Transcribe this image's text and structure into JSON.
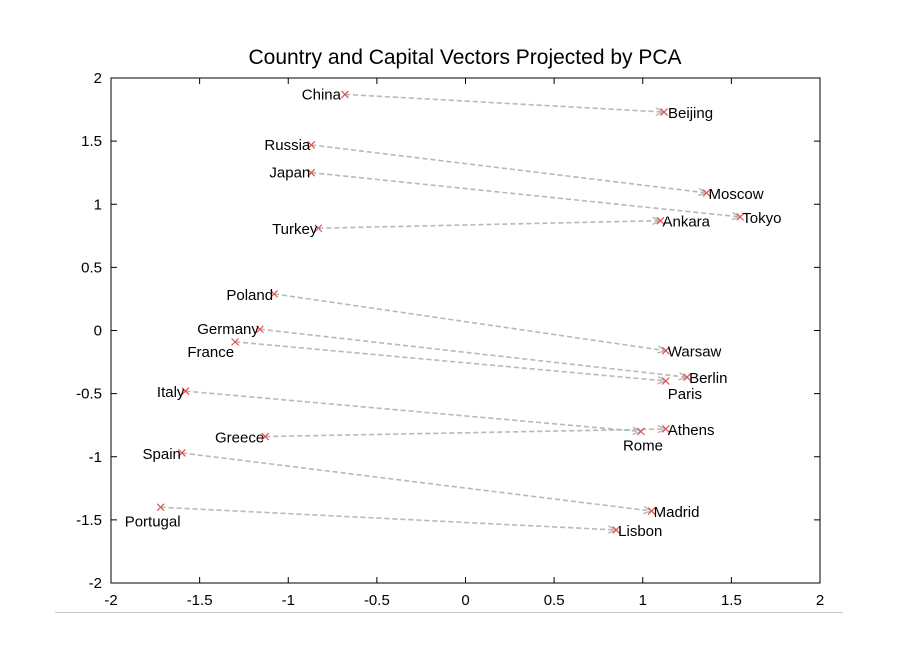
{
  "chart_data": {
    "type": "scatter",
    "title": "Country and Capital Vectors Projected by PCA",
    "xlabel": "",
    "ylabel": "",
    "xlim": [
      -2,
      2
    ],
    "ylim": [
      -2,
      2
    ],
    "x_ticks": [
      "-2",
      "-1.5",
      "-1",
      "-0.5",
      "0",
      "0.5",
      "1",
      "1.5",
      "2"
    ],
    "y_ticks": [
      "2",
      "1.5",
      "1",
      "0.5",
      "0",
      "-0.5",
      "-1",
      "-1.5",
      "-2"
    ],
    "grid": false,
    "colors": {
      "marker": "#e05050",
      "arrow": "#b8b8b8"
    },
    "points": [
      {
        "label": "China",
        "x": -0.68,
        "y": 1.87
      },
      {
        "label": "Beijing",
        "x": 1.12,
        "y": 1.73
      },
      {
        "label": "Russia",
        "x": -0.87,
        "y": 1.47
      },
      {
        "label": "Moscow",
        "x": 1.36,
        "y": 1.09
      },
      {
        "label": "Japan",
        "x": -0.87,
        "y": 1.25
      },
      {
        "label": "Tokyo",
        "x": 1.55,
        "y": 0.9
      },
      {
        "label": "Turkey",
        "x": -0.83,
        "y": 0.81
      },
      {
        "label": "Ankara",
        "x": 1.1,
        "y": 0.87
      },
      {
        "label": "Poland",
        "x": -1.08,
        "y": 0.29
      },
      {
        "label": "Warsaw",
        "x": 1.13,
        "y": -0.16
      },
      {
        "label": "Germany",
        "x": -1.16,
        "y": 0.01
      },
      {
        "label": "Berlin",
        "x": 1.25,
        "y": -0.37
      },
      {
        "label": "France",
        "x": -1.3,
        "y": -0.09
      },
      {
        "label": "Paris",
        "x": 1.13,
        "y": -0.4
      },
      {
        "label": "Italy",
        "x": -1.58,
        "y": -0.48
      },
      {
        "label": "Rome",
        "x": 0.99,
        "y": -0.8
      },
      {
        "label": "Greece",
        "x": -1.13,
        "y": -0.84
      },
      {
        "label": "Athens",
        "x": 1.13,
        "y": -0.78
      },
      {
        "label": "Spain",
        "x": -1.6,
        "y": -0.97
      },
      {
        "label": "Madrid",
        "x": 1.05,
        "y": -1.43
      },
      {
        "label": "Portugal",
        "x": -1.72,
        "y": -1.4
      },
      {
        "label": "Lisbon",
        "x": 0.85,
        "y": -1.58
      }
    ],
    "arrows": [
      {
        "from": "China",
        "to": "Beijing"
      },
      {
        "from": "Russia",
        "to": "Moscow"
      },
      {
        "from": "Japan",
        "to": "Tokyo"
      },
      {
        "from": "Turkey",
        "to": "Ankara"
      },
      {
        "from": "Poland",
        "to": "Warsaw"
      },
      {
        "from": "Germany",
        "to": "Berlin"
      },
      {
        "from": "France",
        "to": "Paris"
      },
      {
        "from": "Italy",
        "to": "Rome"
      },
      {
        "from": "Greece",
        "to": "Athens"
      },
      {
        "from": "Spain",
        "to": "Madrid"
      },
      {
        "from": "Portugal",
        "to": "Lisbon"
      }
    ]
  }
}
